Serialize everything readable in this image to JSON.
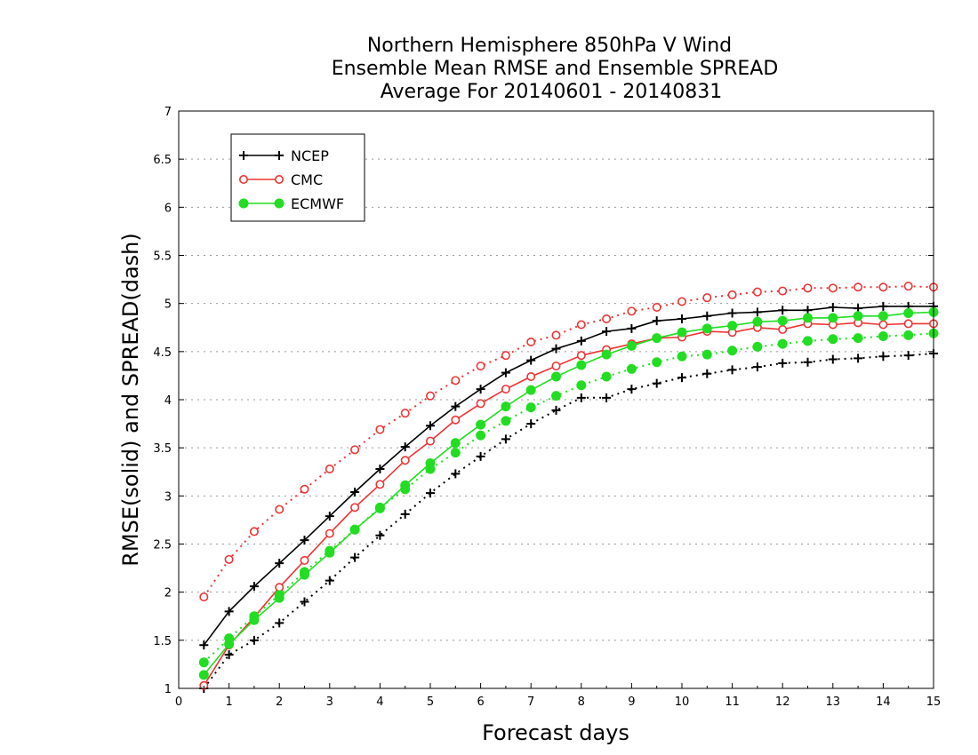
{
  "chart_data": {
    "type": "line",
    "title_lines": [
      "Northern Hemisphere 850hPa V Wind",
      "Ensemble Mean RMSE and Ensemble SPREAD",
      "Average For 20140601 - 20140831"
    ],
    "xlabel": "Forecast days",
    "ylabel": "RMSE(solid) and SPREAD(dash)",
    "xlim": [
      0,
      15
    ],
    "ylim": [
      1,
      7
    ],
    "x_ticks": [
      "0",
      "1",
      "2",
      "3",
      "4",
      "5",
      "6",
      "7",
      "8",
      "9",
      "10",
      "11",
      "12",
      "13",
      "14",
      "15"
    ],
    "y_ticks": [
      "1",
      "1.5",
      "2",
      "2.5",
      "3",
      "3.5",
      "4",
      "4.5",
      "5",
      "5.5",
      "6",
      "6.5",
      "7"
    ],
    "grid": true,
    "legend_position": "top-left",
    "x": [
      0.5,
      1,
      1.5,
      2,
      2.5,
      3,
      3.5,
      4,
      4.5,
      5,
      5.5,
      6,
      6.5,
      7,
      7.5,
      8,
      8.5,
      9,
      9.5,
      10,
      10.5,
      11,
      11.5,
      12,
      12.5,
      13,
      13.5,
      14,
      14.5,
      15
    ],
    "series": [
      {
        "name": "NCEP",
        "color": "#000000",
        "marker": "plus",
        "rmse": [
          1.45,
          1.8,
          2.06,
          2.3,
          2.54,
          2.79,
          3.04,
          3.28,
          3.51,
          3.73,
          3.93,
          4.11,
          4.28,
          4.41,
          4.53,
          4.61,
          4.71,
          4.74,
          4.82,
          4.84,
          4.87,
          4.9,
          4.91,
          4.93,
          4.93,
          4.96,
          4.95,
          4.97,
          4.97,
          4.97
        ],
        "spread": [
          1.0,
          1.35,
          1.5,
          1.68,
          1.9,
          2.12,
          2.36,
          2.59,
          2.81,
          3.03,
          3.23,
          3.41,
          3.59,
          3.75,
          3.89,
          4.02,
          4.02,
          4.11,
          4.17,
          4.23,
          4.27,
          4.31,
          4.34,
          4.38,
          4.39,
          4.42,
          4.43,
          4.45,
          4.46,
          4.48
        ]
      },
      {
        "name": "CMC",
        "color": "#ee3333",
        "marker": "open-circle",
        "rmse": [
          1.03,
          1.45,
          1.74,
          2.05,
          2.33,
          2.61,
          2.88,
          3.12,
          3.37,
          3.57,
          3.79,
          3.96,
          4.11,
          4.24,
          4.35,
          4.46,
          4.52,
          4.58,
          4.64,
          4.65,
          4.71,
          4.7,
          4.75,
          4.73,
          4.79,
          4.78,
          4.8,
          4.78,
          4.79,
          4.79
        ],
        "spread": [
          1.95,
          2.34,
          2.63,
          2.86,
          3.07,
          3.28,
          3.48,
          3.69,
          3.86,
          4.04,
          4.2,
          4.35,
          4.46,
          4.6,
          4.67,
          4.78,
          4.84,
          4.92,
          4.96,
          5.02,
          5.06,
          5.09,
          5.12,
          5.13,
          5.16,
          5.16,
          5.17,
          5.17,
          5.18,
          5.17
        ]
      },
      {
        "name": "ECMWF",
        "color": "#22dd22",
        "marker": "filled-circle",
        "rmse": [
          1.14,
          1.46,
          1.71,
          1.94,
          2.18,
          2.41,
          2.65,
          2.87,
          3.11,
          3.34,
          3.55,
          3.74,
          3.93,
          4.1,
          4.24,
          4.36,
          4.47,
          4.56,
          4.64,
          4.7,
          4.74,
          4.77,
          4.81,
          4.82,
          4.85,
          4.85,
          4.87,
          4.87,
          4.9,
          4.91
        ],
        "spread": [
          1.27,
          1.52,
          1.75,
          1.97,
          2.21,
          2.43,
          2.65,
          2.88,
          3.07,
          3.28,
          3.45,
          3.63,
          3.78,
          3.92,
          4.04,
          4.15,
          4.24,
          4.32,
          4.39,
          4.45,
          4.47,
          4.51,
          4.55,
          4.58,
          4.61,
          4.63,
          4.64,
          4.66,
          4.67,
          4.69
        ]
      }
    ]
  }
}
